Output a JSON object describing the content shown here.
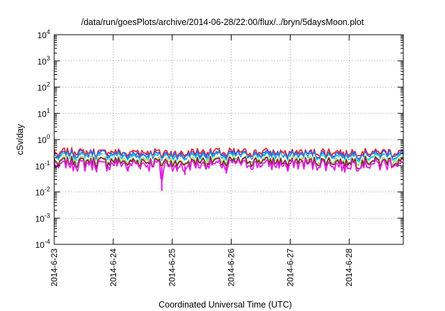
{
  "chart_data": {
    "type": "line",
    "title": "/data/run/goesPlots/archive/2014-06-28/22:00/flux/../bryn/5daysMoon.plot",
    "xlabel": "Coordinated Universal Time (UTC)",
    "ylabel": "cSv/day",
    "yscale": "log",
    "ylim": [
      0.0001,
      10000
    ],
    "xlim": [
      "2014-06-23T00:00",
      "2014-06-28T22:00"
    ],
    "grid": true,
    "legend": "none",
    "x_ticks": [
      "2014-6-23",
      "2014-6-24",
      "2014-6-25",
      "2014-6-26",
      "2014-6-27",
      "2014-6-28"
    ],
    "y_ticks": [
      {
        "value": 0.0001,
        "base": "10",
        "exp": "-4"
      },
      {
        "value": 0.001,
        "base": "10",
        "exp": "-3"
      },
      {
        "value": 0.01,
        "base": "10",
        "exp": "-2"
      },
      {
        "value": 0.1,
        "base": "10",
        "exp": "-1"
      },
      {
        "value": 1,
        "base": "10",
        "exp": "0"
      },
      {
        "value": 10,
        "base": "10",
        "exp": "1"
      },
      {
        "value": 100,
        "base": "10",
        "exp": "2"
      },
      {
        "value": 1000,
        "base": "10",
        "exp": "3"
      },
      {
        "value": 10000,
        "base": "10",
        "exp": "4"
      }
    ],
    "series": [
      {
        "color": "#e8262a",
        "level": 0.34,
        "var": 0.13
      },
      {
        "color": "#3b5ce8",
        "level": 0.29,
        "var": 0.12
      },
      {
        "color": "#2f86d6",
        "level": 0.24,
        "var": 0.1
      },
      {
        "color": "#12d4d9",
        "level": 0.22,
        "var": 0.09
      },
      {
        "color": "#ffffff",
        "level": 0.2,
        "var": 0.08
      },
      {
        "color": "#a8d66a",
        "level": 0.17,
        "var": 0.07
      },
      {
        "color": "#7a2a2a",
        "level": 0.15,
        "var": 0.07
      },
      {
        "color": "#e01fe0",
        "level": 0.12,
        "var": 0.06
      }
    ],
    "dips": [
      {
        "x": "2014-06-23T01:40",
        "y": 0.08
      },
      {
        "x": "2014-06-24T06:00",
        "y": 0.06
      },
      {
        "x": "2014-06-24T19:45",
        "y": 0.011
      },
      {
        "x": "2014-06-25T02:00",
        "y": 0.06
      },
      {
        "x": "2014-06-25T05:10",
        "y": 0.045
      },
      {
        "x": "2014-06-25T22:00",
        "y": 0.05
      },
      {
        "x": "2014-06-26T23:00",
        "y": 0.06
      },
      {
        "x": "2014-06-27T22:10",
        "y": 0.055
      }
    ]
  }
}
